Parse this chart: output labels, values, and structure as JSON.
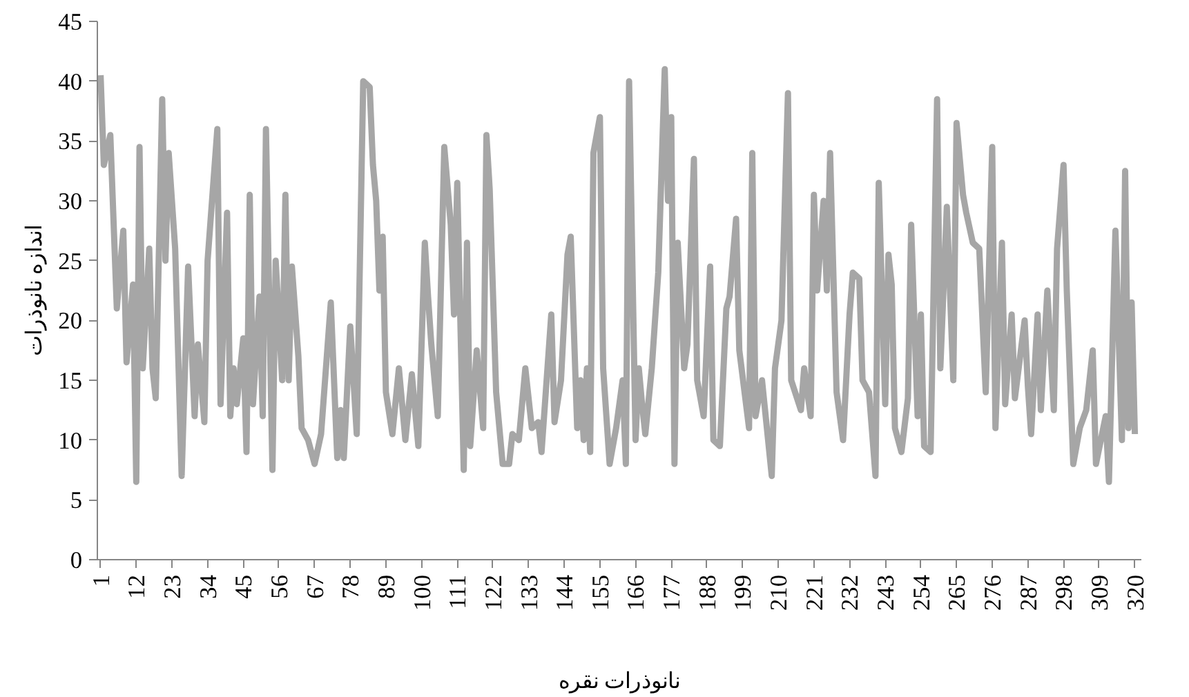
{
  "chart_data": {
    "type": "line",
    "xlabel": "نانوذرات نقره",
    "ylabel": "اندازه نانوذرات",
    "x": [
      1,
      2,
      4,
      6,
      8,
      9,
      11,
      12,
      13,
      14,
      16,
      17,
      18,
      20,
      21,
      22,
      24,
      26,
      28,
      30,
      31,
      33,
      34,
      37,
      38,
      40,
      41,
      42,
      43,
      45,
      46,
      47,
      48,
      50,
      51,
      52,
      54,
      55,
      57,
      58,
      59,
      60,
      62,
      63,
      65,
      67,
      69,
      72,
      74,
      75,
      76,
      78,
      80,
      82,
      84,
      85,
      86,
      87,
      88,
      89,
      91,
      93,
      95,
      97,
      99,
      101,
      102,
      103,
      105,
      107,
      109,
      110,
      111,
      113,
      114,
      115,
      117,
      119,
      120,
      121,
      123,
      125,
      127,
      128,
      130,
      132,
      134,
      136,
      137,
      140,
      141,
      143,
      145,
      146,
      148,
      149,
      150,
      151,
      152,
      153,
      155,
      156,
      158,
      160,
      162,
      163,
      164,
      166,
      167,
      168,
      169,
      171,
      173,
      175,
      176,
      177,
      178,
      179,
      181,
      182,
      184,
      185,
      186,
      187,
      189,
      190,
      192,
      194,
      195,
      197,
      198,
      201,
      202,
      203,
      205,
      208,
      209,
      211,
      213,
      214,
      217,
      218,
      220,
      221,
      222,
      224,
      225,
      226,
      228,
      230,
      232,
      233,
      235,
      236,
      238,
      240,
      241,
      243,
      244,
      245,
      246,
      248,
      250,
      251,
      253,
      254,
      255,
      257,
      259,
      260,
      262,
      264,
      265,
      267,
      268,
      270,
      272,
      274,
      276,
      277,
      279,
      280,
      282,
      283,
      286,
      287,
      288,
      290,
      291,
      293,
      295,
      296,
      298,
      299,
      301,
      303,
      305,
      307,
      308,
      311,
      312,
      314,
      316,
      317,
      318,
      319,
      320
    ],
    "series": [
      {
        "color": "#a6a6a6",
        "values": [
          40.5,
          33,
          35.5,
          21,
          27.5,
          16.5,
          23,
          6.5,
          34.5,
          16,
          26,
          16,
          13.5,
          38.5,
          25,
          34,
          26,
          7,
          24.5,
          12,
          18,
          11.5,
          25,
          36,
          13,
          29,
          12,
          16,
          13,
          18.5,
          9,
          30.5,
          13,
          22,
          12,
          36,
          7.5,
          25,
          15,
          30.5,
          15,
          24.5,
          17,
          11,
          10,
          8,
          10.5,
          21.5,
          8.5,
          12.5,
          8.5,
          19.5,
          10.5,
          40,
          39.5,
          33,
          30,
          22.5,
          27,
          14,
          10.5,
          16,
          10,
          15.5,
          9.5,
          26.5,
          22,
          18,
          12,
          34.5,
          28,
          20.5,
          31.5,
          7.5,
          26.5,
          9.5,
          17.5,
          11,
          35.5,
          31,
          14,
          8,
          8,
          10.5,
          10,
          16,
          11,
          11.5,
          9,
          20.5,
          11.5,
          15,
          25.5,
          27,
          11,
          15,
          10,
          16,
          9,
          34,
          37,
          16,
          8,
          11,
          15,
          8,
          40,
          10,
          16,
          13,
          10.5,
          16,
          24,
          41,
          30,
          37,
          8,
          26.5,
          16,
          18,
          33.5,
          15,
          13.5,
          12,
          24.5,
          10,
          9.5,
          21,
          22,
          28.5,
          17.5,
          11,
          34,
          12,
          15,
          7,
          16,
          20,
          39,
          15,
          12.5,
          16,
          12,
          30.5,
          22.5,
          30,
          22.5,
          34,
          14,
          10,
          20.5,
          24,
          23.5,
          15,
          14,
          7,
          31.5,
          13,
          25.5,
          23,
          11,
          9,
          13.5,
          28,
          12,
          20.5,
          9.5,
          9,
          38.5,
          16,
          29.5,
          15,
          36.5,
          30.5,
          29,
          26.5,
          26,
          14,
          34.5,
          11,
          26.5,
          13,
          20.5,
          13.5,
          20,
          14.5,
          10.5,
          20.5,
          12.5,
          22.5,
          12.5,
          26,
          33,
          22.5,
          8,
          11,
          12.5,
          17.5,
          8,
          12,
          6.5,
          27.5,
          10,
          32.5,
          11,
          21.5,
          10.5
        ]
      }
    ],
    "xlim": [
      0,
      322
    ],
    "ylim": [
      0,
      45
    ],
    "xticks": [
      1,
      12,
      23,
      34,
      45,
      56,
      67,
      78,
      89,
      100,
      111,
      122,
      133,
      144,
      155,
      166,
      177,
      188,
      199,
      210,
      221,
      232,
      243,
      254,
      265,
      276,
      287,
      298,
      309,
      320
    ],
    "yticks": [
      0,
      5,
      10,
      15,
      20,
      25,
      30,
      35,
      40,
      45
    ],
    "grid": false,
    "marker": "none",
    "line_style": "solid"
  }
}
